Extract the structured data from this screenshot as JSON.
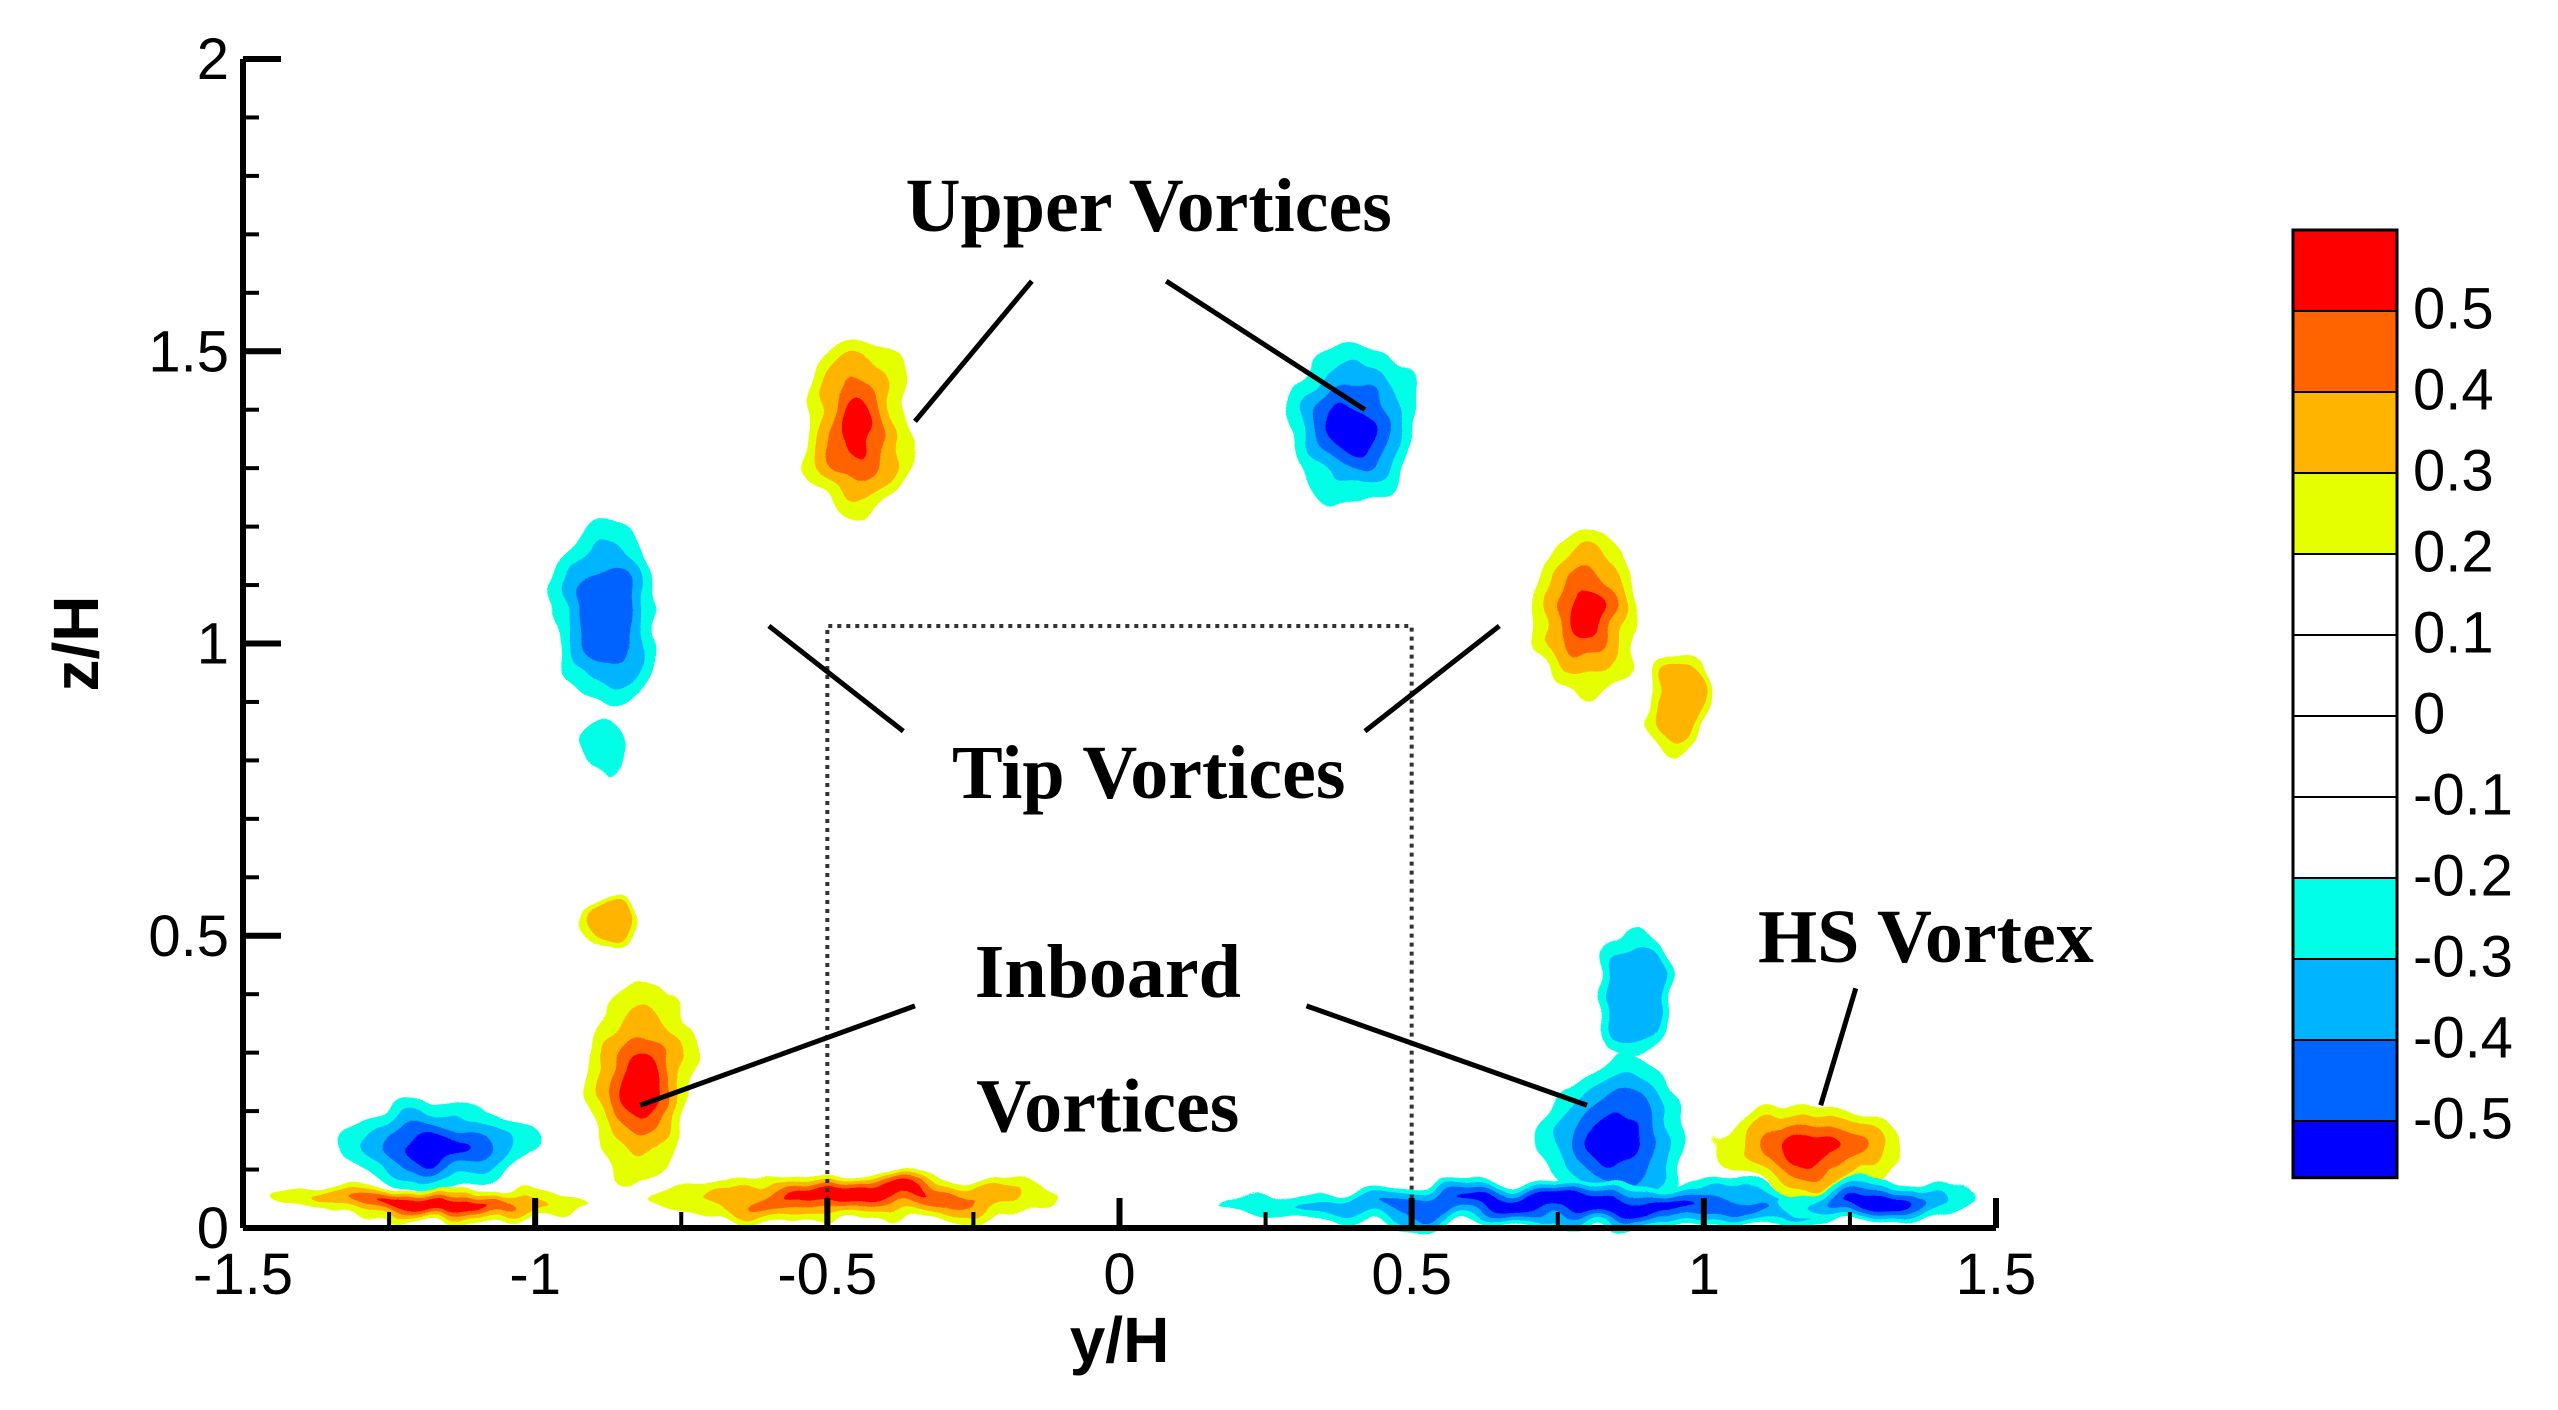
{
  "chart_data": {
    "type": "contour",
    "xlabel": "y/H",
    "ylabel": "z/H",
    "xlim": [
      -1.5,
      1.5
    ],
    "ylim": [
      0,
      2
    ],
    "x_ticks": [
      "-1.5",
      "-1",
      "-0.5",
      "0",
      "0.5",
      "1",
      "1.5"
    ],
    "y_ticks": [
      "0",
      "0.5",
      "1",
      "1.5",
      "2"
    ],
    "grid": false,
    "legend_position": "right",
    "colorbar": {
      "levels": [
        {
          "label": "0.5",
          "color": "#ff0000"
        },
        {
          "label": "0.4",
          "color": "#ff6400"
        },
        {
          "label": "0.3",
          "color": "#ffb400"
        },
        {
          "label": "0.2",
          "color": "#e6ff00"
        },
        {
          "label": "0.1",
          "color": "#ffffff"
        },
        {
          "label": "0",
          "color": "#ffffff"
        },
        {
          "label": "-0.1",
          "color": "#ffffff"
        },
        {
          "label": "-0.2",
          "color": "#ffffff"
        },
        {
          "label": "-0.3",
          "color": "#00ffe6"
        },
        {
          "label": "-0.4",
          "color": "#00b4ff"
        },
        {
          "label": "-0.5",
          "color": "#0064ff"
        }
      ],
      "bottom_color": "#0000ff"
    },
    "regions": [
      {
        "type": "positive",
        "cx": -1.18,
        "cy": 0.04,
        "rx": 0.27,
        "ry": 0.03,
        "level": 0.5
      },
      {
        "type": "negative",
        "cx": -1.17,
        "cy": 0.14,
        "rx": 0.16,
        "ry": 0.07,
        "level": -0.5
      },
      {
        "type": "positive",
        "cx": -0.82,
        "cy": 0.25,
        "rx": 0.09,
        "ry": 0.17,
        "level": 0.5
      },
      {
        "type": "positive",
        "cx": -0.45,
        "cy": 0.05,
        "rx": 0.35,
        "ry": 0.04,
        "level": 0.5
      },
      {
        "type": "positive",
        "cx": -0.88,
        "cy": 0.52,
        "rx": 0.05,
        "ry": 0.04,
        "level": 0.3
      },
      {
        "type": "negative",
        "cx": -0.88,
        "cy": 1.05,
        "rx": 0.09,
        "ry": 0.15,
        "level": -0.4
      },
      {
        "type": "negative",
        "cx": -0.88,
        "cy": 0.82,
        "rx": 0.04,
        "ry": 0.05,
        "level": -0.2
      },
      {
        "type": "positive",
        "cx": -0.45,
        "cy": 1.37,
        "rx": 0.09,
        "ry": 0.14,
        "level": 0.5
      },
      {
        "type": "negative",
        "cx": 0.4,
        "cy": 1.37,
        "rx": 0.11,
        "ry": 0.14,
        "level": -0.5
      },
      {
        "type": "positive",
        "cx": 0.8,
        "cy": 1.05,
        "rx": 0.09,
        "ry": 0.14,
        "level": 0.5
      },
      {
        "type": "positive",
        "cx": 0.95,
        "cy": 0.9,
        "rx": 0.05,
        "ry": 0.09,
        "level": 0.3
      },
      {
        "type": "negative",
        "cx": 0.85,
        "cy": 0.15,
        "rx": 0.12,
        "ry": 0.14,
        "level": -0.5
      },
      {
        "type": "negative",
        "cx": 0.88,
        "cy": 0.4,
        "rx": 0.06,
        "ry": 0.12,
        "level": -0.3
      },
      {
        "type": "negative",
        "cx": 0.78,
        "cy": 0.04,
        "rx": 0.6,
        "ry": 0.04,
        "level": -0.5
      },
      {
        "type": "positive",
        "cx": 1.18,
        "cy": 0.14,
        "rx": 0.17,
        "ry": 0.07,
        "level": 0.5
      },
      {
        "type": "negative",
        "cx": 1.3,
        "cy": 0.05,
        "rx": 0.16,
        "ry": 0.04,
        "level": -0.5
      }
    ],
    "dashed_box": {
      "x": [
        -0.5,
        0.5
      ],
      "y": [
        0,
        1.03
      ]
    },
    "annotations": [
      {
        "text": "Upper Vortices",
        "x": 0.05,
        "y": 1.75,
        "arrows": [
          [
            -0.15,
            1.62,
            -0.35,
            1.38
          ],
          [
            0.08,
            1.62,
            0.42,
            1.4
          ]
        ]
      },
      {
        "text": "Tip Vortices",
        "x": 0.05,
        "y": 0.78,
        "arrows": [
          [
            -0.37,
            0.85,
            -0.6,
            1.03
          ],
          [
            0.42,
            0.85,
            0.65,
            1.03
          ]
        ]
      },
      {
        "text": "Inboard",
        "x": -0.02,
        "y": 0.44,
        "arrows": [
          [
            -0.35,
            0.38,
            -0.82,
            0.21
          ],
          [
            0.32,
            0.38,
            0.8,
            0.21
          ]
        ]
      },
      {
        "text": "Vortices",
        "x": -0.02,
        "y": 0.21,
        "arrows": []
      },
      {
        "text": "HS Vortex",
        "x": 1.38,
        "y": 0.5,
        "arrows": [
          [
            1.26,
            0.41,
            1.2,
            0.21
          ]
        ]
      }
    ]
  }
}
